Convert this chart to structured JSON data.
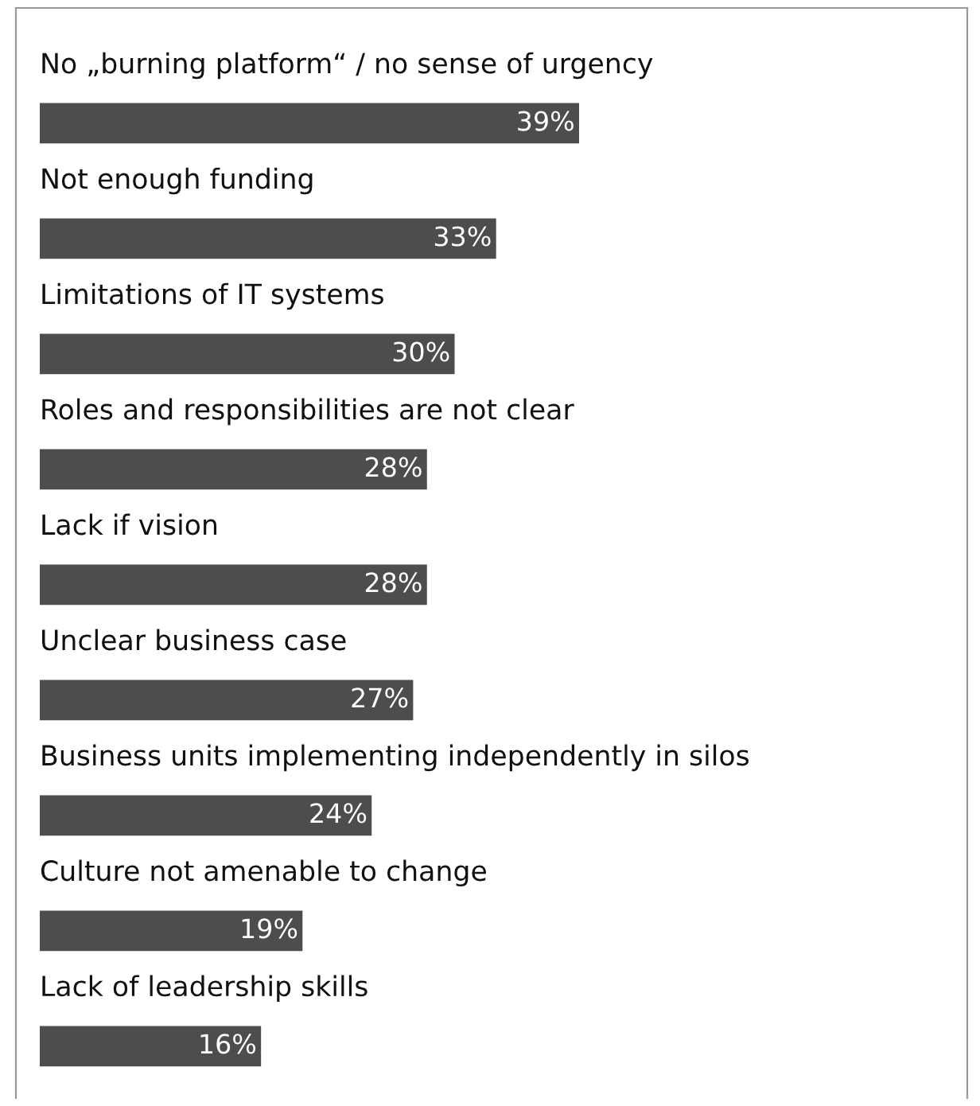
{
  "chart_data": {
    "type": "bar",
    "orientation": "horizontal",
    "data_labels": true,
    "color": "#4d4d4d",
    "categories": [
      "No „burning platform“ / no sense of urgency",
      "Not enough funding",
      "Limitations of IT systems",
      "Roles and responsibilities are not clear",
      "Lack if vision",
      "Unclear business case",
      "Business units implementing independently in silos",
      "Culture not amenable to change",
      "Lack of leadership skills"
    ],
    "values": [
      39,
      33,
      30,
      28,
      28,
      27,
      24,
      19,
      16
    ],
    "value_labels": [
      "39%",
      "33%",
      "30%",
      "28%",
      "28%",
      "27%",
      "24%",
      "19%",
      "16%"
    ],
    "legend": false
  }
}
